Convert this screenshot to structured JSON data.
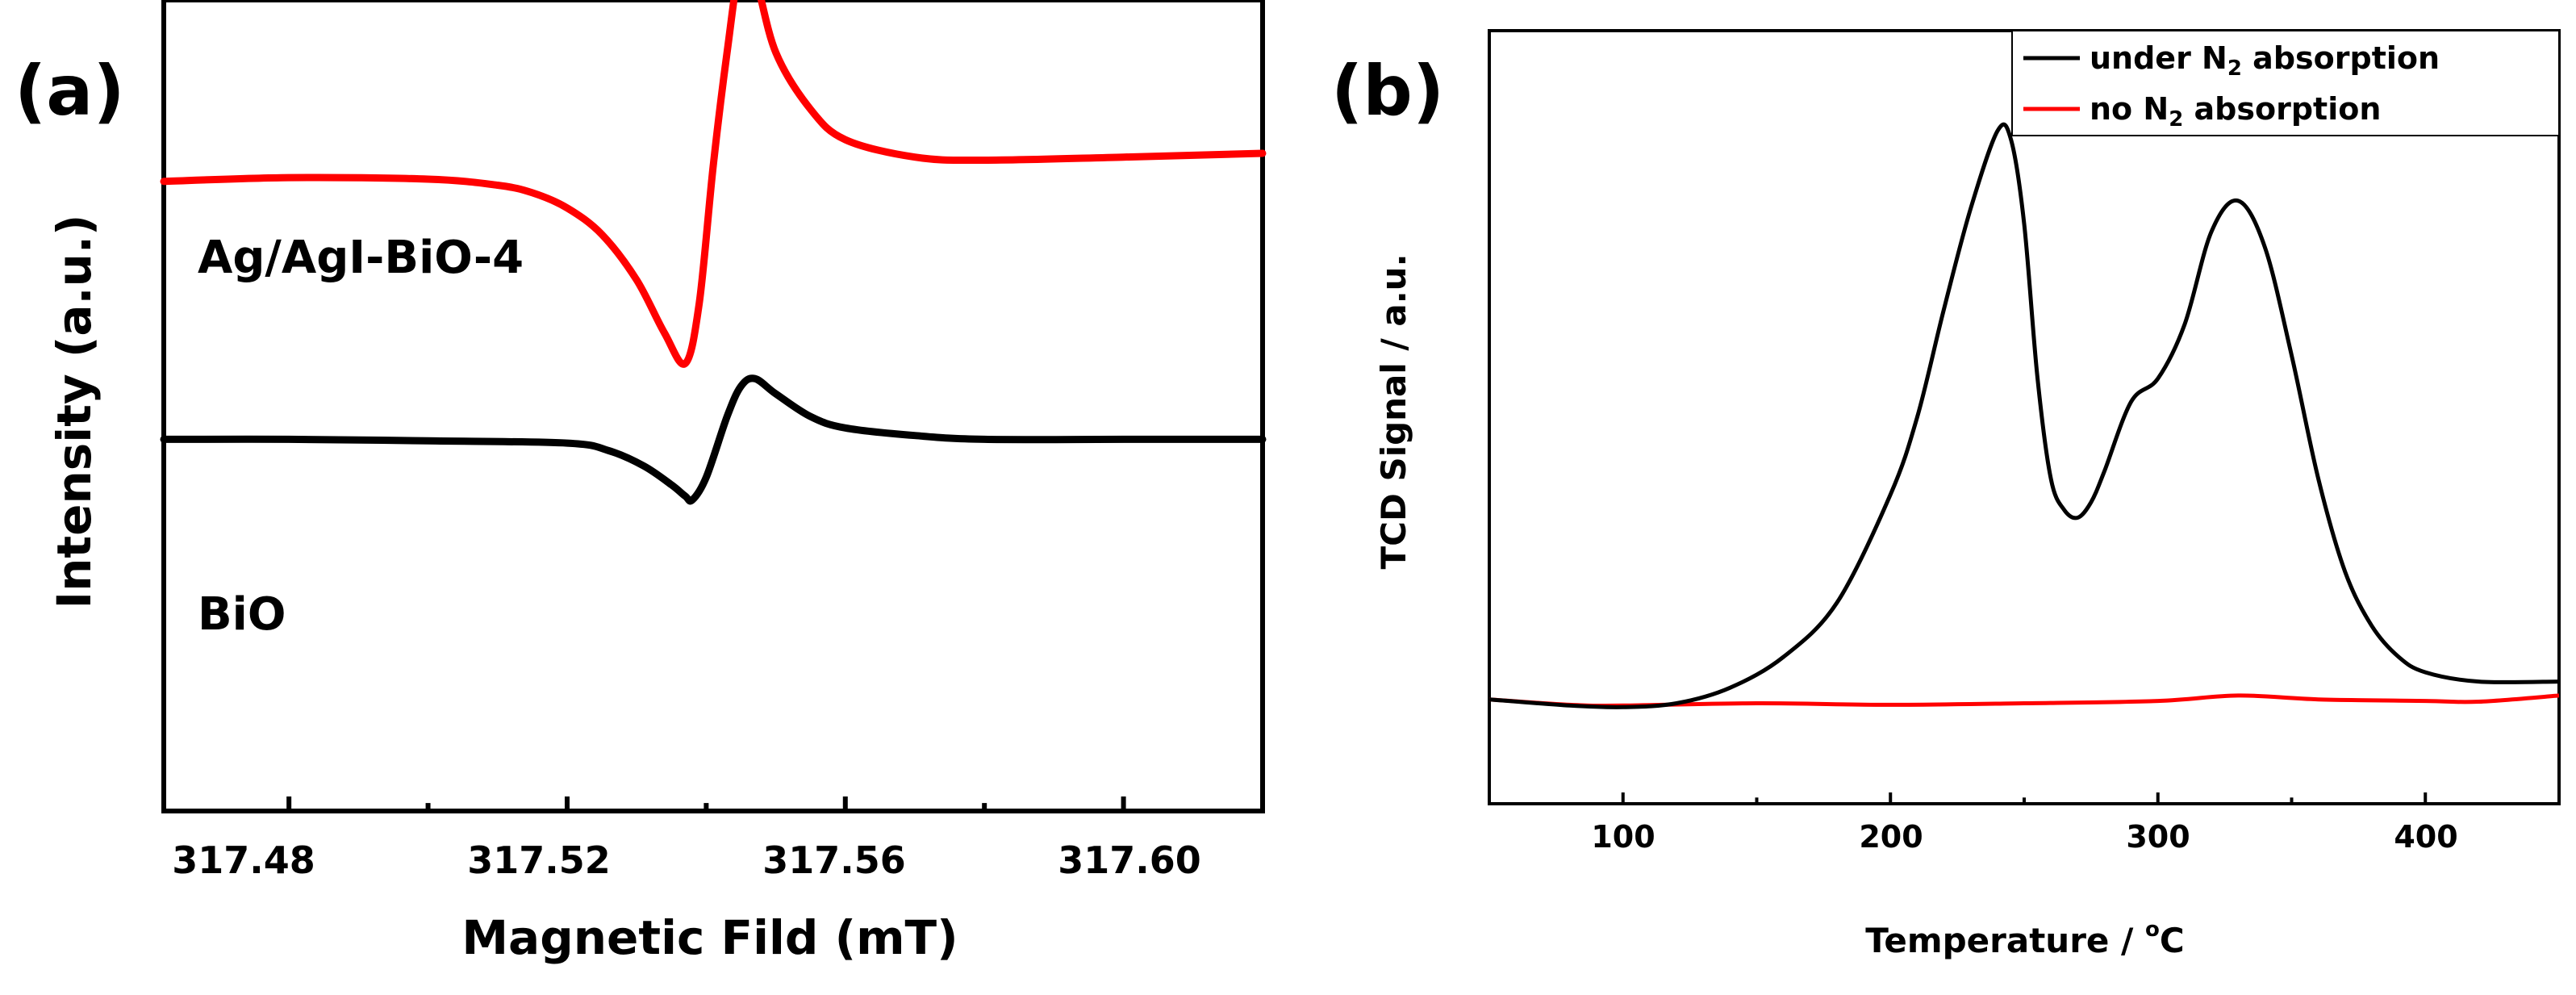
{
  "chart_data": [
    {
      "panel_label": "(a)",
      "type": "line",
      "title": "",
      "xlabel": "Magnetic Fild (mT)",
      "ylabel": "Intensity (a.u.)",
      "xlim": [
        317.462,
        317.62
      ],
      "xticks": [
        317.48,
        317.52,
        317.56,
        317.6
      ],
      "xtick_labels": [
        "317.48",
        "317.52",
        "317.56",
        "317.60"
      ],
      "ylim": [
        0,
        1
      ],
      "y_ticks_shown": false,
      "series": [
        {
          "name": "Ag/AgI-BiO-4",
          "color": "#ff0000",
          "x": [
            317.462,
            317.48,
            317.5,
            317.51,
            317.515,
            317.52,
            317.525,
            317.53,
            317.534,
            317.537,
            317.539,
            317.541,
            317.543,
            317.545,
            317.547,
            317.55,
            317.555,
            317.56,
            317.57,
            317.58,
            317.6,
            317.62
          ],
          "y": [
            0.83,
            0.835,
            0.833,
            0.825,
            0.815,
            0.795,
            0.76,
            0.7,
            0.63,
            0.59,
            0.67,
            0.85,
            1.0,
            1.12,
            1.1,
            1.0,
            0.925,
            0.885,
            0.862,
            0.858,
            0.862,
            0.867
          ]
        },
        {
          "name": "BiO",
          "color": "#000000",
          "x": [
            317.462,
            317.48,
            317.5,
            317.52,
            317.526,
            317.531,
            317.535,
            317.537,
            317.538,
            317.54,
            317.543,
            317.545,
            317.547,
            317.55,
            317.555,
            317.56,
            317.57,
            317.58,
            317.6,
            317.62
          ],
          "y": [
            0.49,
            0.49,
            0.488,
            0.485,
            0.475,
            0.455,
            0.43,
            0.415,
            0.41,
            0.44,
            0.52,
            0.56,
            0.57,
            0.55,
            0.52,
            0.505,
            0.495,
            0.49,
            0.49,
            0.49
          ]
        }
      ]
    },
    {
      "panel_label": "(b)",
      "type": "line",
      "title": "",
      "xlabel": "Temperature / °C",
      "xlabel_main": "Temperature / ",
      "xlabel_sup": "o",
      "xlabel_unit": "C",
      "ylabel": "TCD Signal / a.u.",
      "xlim": [
        50,
        450
      ],
      "xticks": [
        100,
        200,
        300,
        400
      ],
      "xtick_labels": [
        "100",
        "200",
        "300",
        "400"
      ],
      "ylim": [
        0,
        1
      ],
      "y_ticks_shown": false,
      "legend_position": "top-right",
      "legend": [
        {
          "prefix": "under N",
          "sub": "2",
          "suffix": " absorption",
          "color": "#000000"
        },
        {
          "prefix": "no N",
          "sub": "2",
          "suffix": " absorption",
          "color": "#ff0000"
        }
      ],
      "series": [
        {
          "name": "under N2 absorption",
          "color": "#000000",
          "x": [
            50,
            80,
            100,
            120,
            140,
            160,
            180,
            200,
            210,
            220,
            230,
            240,
            245,
            250,
            255,
            260,
            265,
            270,
            275,
            280,
            290,
            300,
            310,
            320,
            330,
            340,
            350,
            360,
            370,
            380,
            390,
            400,
            420,
            450
          ],
          "y": [
            0.135,
            0.127,
            0.125,
            0.13,
            0.15,
            0.19,
            0.26,
            0.4,
            0.5,
            0.64,
            0.77,
            0.87,
            0.86,
            0.75,
            0.55,
            0.42,
            0.38,
            0.37,
            0.39,
            0.43,
            0.52,
            0.55,
            0.62,
            0.74,
            0.78,
            0.72,
            0.58,
            0.42,
            0.3,
            0.23,
            0.19,
            0.17,
            0.158,
            0.158
          ]
        },
        {
          "name": "no N2 absorption",
          "color": "#ff0000",
          "x": [
            50,
            80,
            100,
            150,
            200,
            250,
            300,
            330,
            360,
            400,
            420,
            450
          ],
          "y": [
            0.135,
            0.128,
            0.127,
            0.13,
            0.128,
            0.13,
            0.133,
            0.14,
            0.135,
            0.133,
            0.132,
            0.14
          ]
        }
      ]
    }
  ]
}
